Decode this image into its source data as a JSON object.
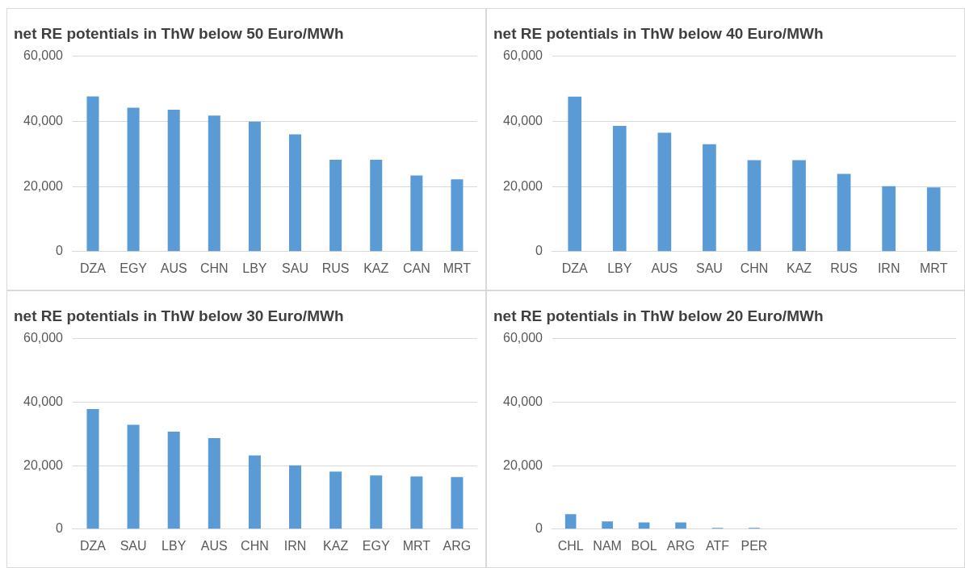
{
  "chart_data": [
    {
      "type": "bar",
      "title": "net RE potentials in ThW below 50 Euro/MWh",
      "categories": [
        "DZA",
        "EGY",
        "AUS",
        "CHN",
        "LBY",
        "SAU",
        "RUS",
        "KAZ",
        "CAN",
        "MRT"
      ],
      "values": [
        47700,
        44200,
        43600,
        41800,
        39900,
        36000,
        28200,
        28200,
        23400,
        22200
      ],
      "color": "#5b9bd5",
      "ylim": [
        0,
        60000
      ],
      "yticks": [
        {
          "value": 0,
          "label": "0"
        },
        {
          "value": 20000,
          "label": "20,000"
        },
        {
          "value": 40000,
          "label": "40,000"
        },
        {
          "value": 60000,
          "label": "60,000"
        }
      ],
      "grid": "y"
    },
    {
      "type": "bar",
      "title": "net RE potentials in ThW below 40 Euro/MWh",
      "categories": [
        "DZA",
        "LBY",
        "AUS",
        "SAU",
        "CHN",
        "KAZ",
        "RUS",
        "IRN",
        "MRT"
      ],
      "values": [
        47600,
        38600,
        36500,
        33000,
        28100,
        28100,
        23900,
        20100,
        19700
      ],
      "color": "#5b9bd5",
      "ylim": [
        0,
        60000
      ],
      "yticks": [
        {
          "value": 0,
          "label": "0"
        },
        {
          "value": 20000,
          "label": "20,000"
        },
        {
          "value": 40000,
          "label": "40,000"
        },
        {
          "value": 60000,
          "label": "60,000"
        }
      ],
      "grid": "y"
    },
    {
      "type": "bar",
      "title": "net RE potentials in ThW below 30 Euro/MWh",
      "categories": [
        "DZA",
        "SAU",
        "LBY",
        "AUS",
        "CHN",
        "IRN",
        "KAZ",
        "EGY",
        "MRT",
        "ARG"
      ],
      "values": [
        37800,
        32900,
        30700,
        28700,
        23200,
        20100,
        18100,
        16900,
        16600,
        16400
      ],
      "color": "#5b9bd5",
      "ylim": [
        0,
        60000
      ],
      "yticks": [
        {
          "value": 0,
          "label": "0"
        },
        {
          "value": 20000,
          "label": "20,000"
        },
        {
          "value": 40000,
          "label": "40,000"
        },
        {
          "value": 60000,
          "label": "60,000"
        }
      ],
      "grid": "y"
    },
    {
      "type": "bar",
      "title": "net RE potentials in ThW below 20 Euro/MWh",
      "categories": [
        "CHL",
        "NAM",
        "BOL",
        "ARG",
        "ATF",
        "PER",
        null,
        null,
        null,
        null,
        null
      ],
      "values": [
        4700,
        2400,
        2100,
        2100,
        400,
        400,
        null,
        null,
        null,
        null,
        null
      ],
      "color": "#5b9bd5",
      "ylim": [
        0,
        60000
      ],
      "yticks": [
        {
          "value": 0,
          "label": "0"
        },
        {
          "value": 20000,
          "label": "20,000"
        },
        {
          "value": 40000,
          "label": "40,000"
        },
        {
          "value": 60000,
          "label": "60,000"
        }
      ],
      "grid": "y"
    }
  ]
}
